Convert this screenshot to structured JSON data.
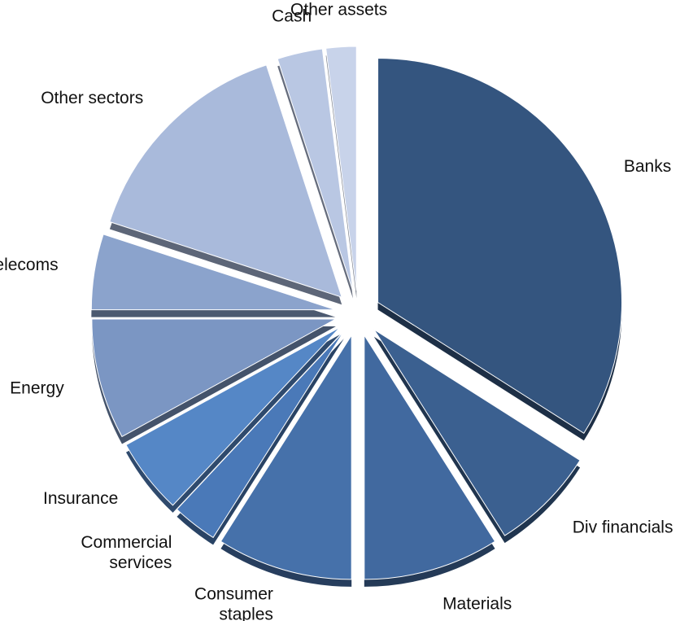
{
  "chart_data": {
    "type": "pie",
    "categories": [
      "Banks",
      "Div financials",
      "Materials",
      "Consumer staples",
      "Commercial services",
      "Insurance",
      "Energy",
      "Telecoms",
      "Other sectors",
      "Cash",
      "Other assets"
    ],
    "values": [
      34,
      7,
      9,
      9,
      3,
      5,
      8,
      5,
      15,
      3,
      2
    ],
    "colors": [
      "#34557f",
      "#3b6090",
      "#41699f",
      "#4671aa",
      "#4a79b8",
      "#5587c6",
      "#7b96c3",
      "#8ba3cc",
      "#a9badb",
      "#b9c7e3",
      "#c8d3ea"
    ]
  }
}
